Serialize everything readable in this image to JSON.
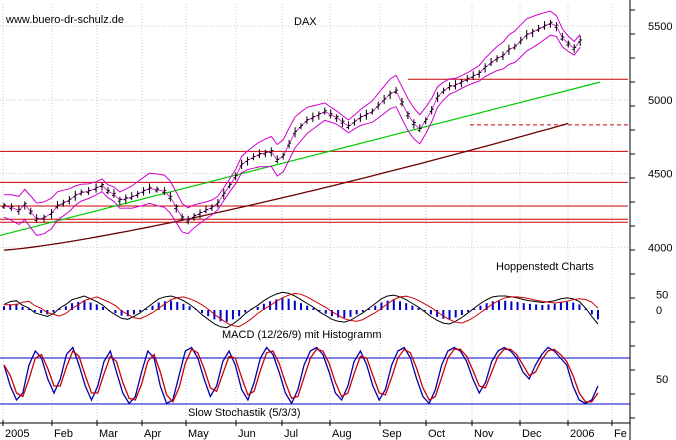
{
  "watermark": "www.buero-dr-schulz.de",
  "title": "DAX",
  "source_label": "Hoppenstedt Charts",
  "macd_label": "MACD (12/26/9) mit Histogramm",
  "stoch_label": "Slow Stochastik (5/3/3)",
  "colors": {
    "price": "#000000",
    "bollinger": "#d000d0",
    "trend": "#00cc00",
    "ma200": "#6b0000",
    "horizontal": "#cc0000",
    "macd_hist": "#0000cc",
    "macd_line": "#000000",
    "signal_line": "#cc0000",
    "stoch_k": "#0000aa",
    "stoch_d": "#cc0000",
    "stoch_bounds": "#0000cc",
    "grid": "#c8c8c8"
  },
  "chart_data": [
    {
      "type": "line",
      "title": "DAX",
      "x_ticks": [
        "2005",
        "Feb",
        "Mar",
        "Apr",
        "May",
        "Jun",
        "Jul",
        "Aug",
        "Sep",
        "Oct",
        "Nov",
        "Dec",
        "2006",
        "Fe"
      ],
      "y_ticks": [
        4000,
        4500,
        5000,
        5500
      ],
      "ylim": [
        3900,
        5650
      ],
      "grid": true,
      "series": [
        {
          "points": [
            [
              0,
              4280
            ],
            [
              5,
              4270
            ],
            [
              10,
              4250
            ],
            [
              14,
              4290
            ],
            [
              18,
              4240
            ],
            [
              22,
              4190
            ],
            [
              27,
              4200
            ],
            [
              32,
              4230
            ],
            [
              36,
              4280
            ],
            [
              40,
              4300
            ],
            [
              44,
              4320
            ],
            [
              48,
              4350
            ],
            [
              52,
              4370
            ],
            [
              57,
              4380
            ],
            [
              62,
              4400
            ],
            [
              66,
              4420
            ],
            [
              70,
              4380
            ],
            [
              74,
              4360
            ],
            [
              78,
              4320
            ],
            [
              82,
              4330
            ],
            [
              86,
              4340
            ],
            [
              90,
              4360
            ],
            [
              94,
              4380
            ],
            [
              98,
              4400
            ],
            [
              103,
              4390
            ],
            [
              108,
              4380
            ],
            [
              112,
              4340
            ],
            [
              116,
              4270
            ],
            [
              120,
              4200
            ],
            [
              124,
              4180
            ],
            [
              128,
              4210
            ],
            [
              132,
              4230
            ],
            [
              136,
              4250
            ],
            [
              140,
              4270
            ],
            [
              144,
              4300
            ],
            [
              148,
              4360
            ],
            [
              152,
              4420
            ],
            [
              156,
              4480
            ],
            [
              160,
              4560
            ],
            [
              164,
              4590
            ],
            [
              168,
              4610
            ],
            [
              172,
              4630
            ],
            [
              176,
              4640
            ],
            [
              180,
              4650
            ],
            [
              184,
              4590
            ],
            [
              188,
              4620
            ],
            [
              192,
              4700
            ],
            [
              196,
              4780
            ],
            [
              200,
              4820
            ],
            [
              204,
              4860
            ],
            [
              208,
              4880
            ],
            [
              212,
              4900
            ],
            [
              216,
              4920
            ],
            [
              220,
              4900
            ],
            [
              224,
              4880
            ],
            [
              228,
              4850
            ],
            [
              232,
              4820
            ],
            [
              236,
              4850
            ],
            [
              240,
              4880
            ],
            [
              244,
              4900
            ],
            [
              248,
              4920
            ],
            [
              252,
              4960
            ],
            [
              256,
              5000
            ],
            [
              260,
              5040
            ],
            [
              264,
              5060
            ],
            [
              268,
              4980
            ],
            [
              272,
              4900
            ],
            [
              276,
              4840
            ],
            [
              280,
              4800
            ],
            [
              284,
              4860
            ],
            [
              288,
              4930
            ],
            [
              292,
              5020
            ],
            [
              296,
              5060
            ],
            [
              300,
              5090
            ],
            [
              304,
              5100
            ],
            [
              308,
              5120
            ],
            [
              312,
              5140
            ],
            [
              316,
              5160
            ],
            [
              320,
              5180
            ],
            [
              324,
              5220
            ],
            [
              328,
              5250
            ],
            [
              332,
              5280
            ],
            [
              336,
              5300
            ],
            [
              340,
              5340
            ],
            [
              344,
              5360
            ],
            [
              348,
              5400
            ],
            [
              352,
              5440
            ],
            [
              356,
              5460
            ],
            [
              360,
              5480
            ],
            [
              364,
              5500
            ],
            [
              368,
              5520
            ],
            [
              372,
              5500
            ],
            [
              376,
              5420
            ],
            [
              380,
              5380
            ],
            [
              384,
              5350
            ],
            [
              388,
              5400
            ]
          ]
        }
      ]
    },
    {
      "type": "bar",
      "title": "MACD (12/26/9) mit Histogramm",
      "y_ticks": [
        50,
        0
      ],
      "ylim": [
        -90,
        90
      ],
      "values": [
        12,
        18,
        20,
        10,
        4,
        -6,
        -10,
        -14,
        -8,
        4,
        12,
        22,
        26,
        30,
        24,
        18,
        10,
        -2,
        -10,
        -18,
        -20,
        -14,
        -6,
        4,
        14,
        24,
        28,
        30,
        26,
        20,
        12,
        2,
        -10,
        -20,
        -30,
        -36,
        -38,
        -30,
        -20,
        -8,
        2,
        10,
        20,
        28,
        34,
        38,
        36,
        30,
        22,
        14,
        6,
        -4,
        -12,
        -20,
        -24,
        -26,
        -22,
        -14,
        -6,
        4,
        14,
        24,
        30,
        32,
        28,
        22,
        14,
        6,
        -4,
        -14,
        -22,
        -28,
        -30,
        -24,
        -16,
        -6,
        4,
        14,
        22,
        28,
        30,
        30,
        28,
        26,
        22,
        20,
        18,
        16,
        18,
        20,
        24,
        26,
        24,
        18,
        4,
        -14,
        -30
      ]
    },
    {
      "type": "line",
      "title": "Slow Stochastik (5/3/3)",
      "y_ticks": [
        50
      ],
      "ylim": [
        0,
        100
      ],
      "series": [
        {
          "values": [
            70,
            40,
            20,
            30,
            70,
            90,
            80,
            50,
            30,
            50,
            85,
            95,
            70,
            40,
            20,
            40,
            75,
            90,
            60,
            30,
            15,
            25,
            60,
            90,
            80,
            40,
            15,
            20,
            55,
            90,
            95,
            80,
            50,
            25,
            40,
            75,
            90,
            70,
            35,
            20,
            45,
            80,
            95,
            85,
            60,
            30,
            15,
            35,
            70,
            90,
            95,
            85,
            60,
            30,
            20,
            40,
            75,
            90,
            70,
            40,
            20,
            35,
            70,
            90,
            95,
            80,
            50,
            25,
            15,
            35,
            70,
            90,
            95,
            90,
            75,
            50,
            30,
            45,
            75,
            90,
            95,
            90,
            80,
            60,
            50,
            70,
            85,
            95,
            90,
            80,
            70,
            40,
            20,
            15,
            20,
            40
          ]
        }
      ]
    }
  ]
}
